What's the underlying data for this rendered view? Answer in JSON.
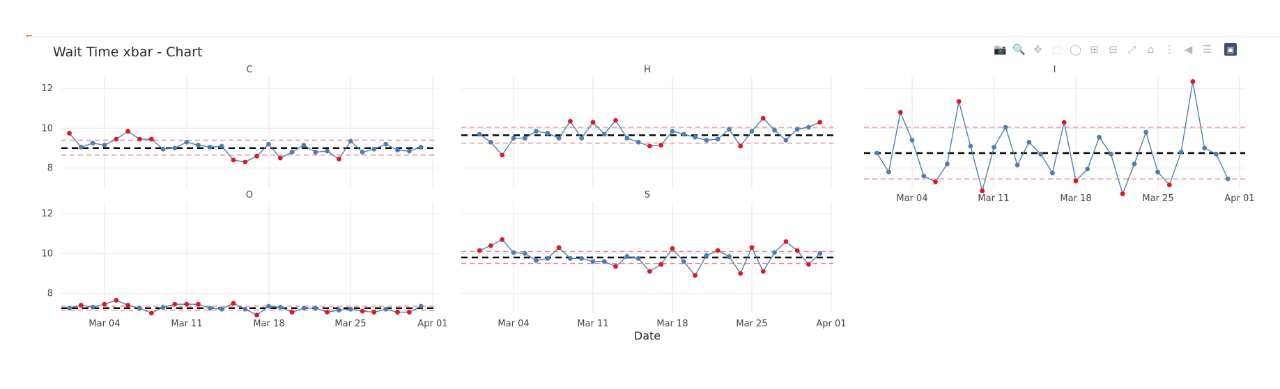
{
  "title": "Wait Time xbar - Chart",
  "modebar": [
    "camera-icon",
    "zoom-icon",
    "pan-icon",
    "box-select-icon",
    "lasso-icon",
    "zoom-in-icon",
    "zoom-out-icon",
    "autoscale-icon",
    "reset-axes-icon",
    "spike-lines-icon",
    "hover-closest-icon",
    "hover-compare-icon",
    "plotly-logo-icon"
  ],
  "colors": {
    "line": "#4a7fb5",
    "point": "#4a7fb5",
    "out_of_control": "#e8131d",
    "center": "#000000",
    "limits": "#f08080",
    "grid": "#e6e6e6"
  },
  "chart_data": {
    "type": "line",
    "subtype": "xbar control chart",
    "title": "Wait Time xbar - Chart",
    "xlabel": "Date",
    "ylabel": "",
    "x_start": "2024-03-01",
    "x_ticks": [
      "Mar 04",
      "Mar 11",
      "Mar 18",
      "Mar 25",
      "Apr 01"
    ],
    "shared_ylim": [
      7,
      12.6
    ],
    "shared_y_ticks": [
      8,
      10,
      12
    ],
    "panel_ylim_I": [
      7,
      12.6
    ],
    "panels": [
      {
        "name": "C",
        "center": 9.0,
        "ucl": 9.4,
        "lcl": 8.65,
        "values": [
          9.75,
          9.05,
          9.25,
          9.15,
          9.45,
          9.85,
          9.45,
          9.45,
          8.95,
          9.0,
          9.3,
          9.15,
          9.05,
          9.1,
          8.4,
          8.3,
          8.6,
          9.2,
          8.5,
          8.8,
          9.15,
          8.8,
          8.85,
          8.45,
          9.35,
          8.8,
          8.95,
          9.2,
          8.9,
          8.85,
          9.05
        ]
      },
      {
        "name": "H",
        "center": 9.65,
        "ucl": 10.05,
        "lcl": 9.25,
        "values": [
          9.7,
          9.3,
          8.65,
          9.5,
          9.5,
          9.85,
          9.75,
          9.5,
          10.35,
          9.5,
          10.3,
          9.7,
          10.4,
          9.5,
          9.3,
          9.1,
          9.15,
          9.85,
          9.7,
          9.55,
          9.4,
          9.45,
          9.95,
          9.1,
          9.85,
          10.5,
          9.9,
          9.4,
          9.95,
          10.05,
          10.3
        ]
      },
      {
        "name": "I",
        "center": 8.75,
        "ucl": 10.05,
        "lcl": 7.45,
        "values": [
          8.75,
          7.8,
          10.8,
          9.4,
          7.6,
          7.3,
          8.2,
          11.35,
          9.1,
          6.85,
          9.05,
          10.05,
          8.15,
          9.3,
          8.7,
          7.75,
          10.3,
          7.35,
          7.95,
          9.55,
          8.7,
          6.7,
          8.2,
          9.8,
          7.8,
          7.15,
          8.8,
          12.35,
          9.0,
          8.7,
          7.45
        ]
      },
      {
        "name": "O",
        "center": 7.25,
        "ucl": 7.35,
        "lcl": 7.15,
        "values": [
          7.25,
          7.4,
          7.3,
          7.45,
          7.65,
          7.4,
          7.25,
          7.0,
          7.3,
          7.45,
          7.45,
          7.45,
          7.25,
          7.2,
          7.5,
          7.2,
          6.9,
          7.35,
          7.3,
          7.05,
          7.25,
          7.25,
          7.05,
          7.15,
          7.2,
          7.1,
          7.05,
          7.2,
          7.05,
          7.05,
          7.35
        ]
      },
      {
        "name": "S",
        "center": 9.8,
        "ucl": 10.1,
        "lcl": 9.5,
        "values": [
          10.15,
          10.4,
          10.7,
          10.05,
          10.0,
          9.65,
          9.75,
          10.3,
          9.75,
          9.75,
          9.6,
          9.6,
          9.35,
          9.85,
          9.75,
          9.1,
          9.45,
          10.25,
          9.6,
          8.9,
          9.9,
          10.15,
          9.85,
          9.0,
          10.3,
          9.1,
          10.05,
          10.6,
          10.15,
          9.45,
          10.0
        ]
      }
    ]
  }
}
